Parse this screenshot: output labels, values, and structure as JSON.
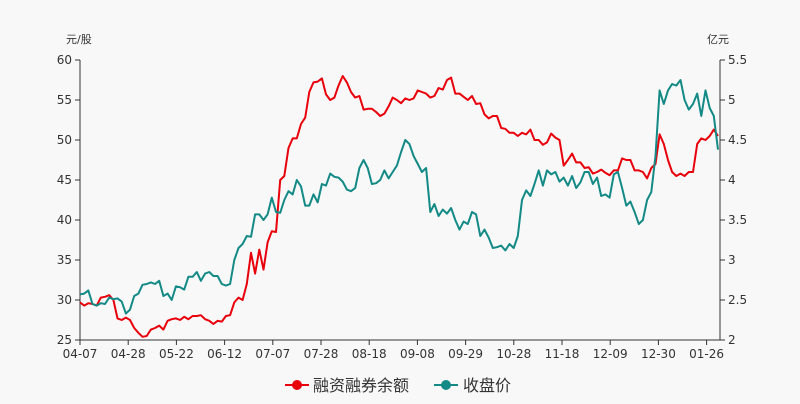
{
  "chart_data": {
    "type": "line",
    "left_axis": {
      "label": "元/股",
      "ylim": [
        25,
        60
      ],
      "ticks": [
        "25",
        "30",
        "35",
        "40",
        "45",
        "50",
        "55",
        "60"
      ]
    },
    "right_axis": {
      "label": "亿元",
      "ylim": [
        2,
        5.5
      ],
      "ticks": [
        "2",
        "2.5",
        "3",
        "3.5",
        "4",
        "4.5",
        "5",
        "5.5"
      ]
    },
    "x_ticks": [
      "04-07",
      "04-28",
      "05-22",
      "06-12",
      "07-07",
      "07-28",
      "08-18",
      "09-08",
      "09-29",
      "10-28",
      "11-18",
      "12-09",
      "12-30",
      "01-26"
    ],
    "grid": false,
    "legend_position": "bottom",
    "series": [
      {
        "name": "融资融券余额",
        "axis": "right",
        "color": "#e8000b",
        "values": [
          2.47,
          2.43,
          2.46,
          2.45,
          2.43,
          2.53,
          2.54,
          2.56,
          2.5,
          2.27,
          2.25,
          2.28,
          2.25,
          2.15,
          2.09,
          2.04,
          2.05,
          2.13,
          2.15,
          2.18,
          2.13,
          2.24,
          2.26,
          2.27,
          2.25,
          2.29,
          2.26,
          2.3,
          2.3,
          2.31,
          2.26,
          2.24,
          2.2,
          2.24,
          2.23,
          2.3,
          2.31,
          2.47,
          2.53,
          2.5,
          2.7,
          3.09,
          2.83,
          3.13,
          2.88,
          3.22,
          3.36,
          3.35,
          4.0,
          4.05,
          4.4,
          4.52,
          4.52,
          4.7,
          4.78,
          5.1,
          5.22,
          5.23,
          5.27,
          5.07,
          5.0,
          5.03,
          5.18,
          5.3,
          5.22,
          5.1,
          5.03,
          5.05,
          4.88,
          4.89,
          4.89,
          4.85,
          4.8,
          4.83,
          4.92,
          5.03,
          5.0,
          4.96,
          5.02,
          5.0,
          5.02,
          5.12,
          5.1,
          5.08,
          5.03,
          5.05,
          5.15,
          5.13,
          5.25,
          5.28,
          5.08,
          5.08,
          5.04,
          5.0,
          5.05,
          4.95,
          4.96,
          4.82,
          4.77,
          4.8,
          4.8,
          4.65,
          4.64,
          4.59,
          4.59,
          4.55,
          4.59,
          4.57,
          4.63,
          4.5,
          4.5,
          4.44,
          4.47,
          4.58,
          4.53,
          4.5,
          4.18,
          4.25,
          4.33,
          4.22,
          4.22,
          4.15,
          4.16,
          4.08,
          4.1,
          4.13,
          4.09,
          4.06,
          4.12,
          4.12,
          4.27,
          4.25,
          4.25,
          4.12,
          4.12,
          4.1,
          4.02,
          4.15,
          4.2,
          4.57,
          4.45,
          4.25,
          4.1,
          4.05,
          4.08,
          4.05,
          4.1,
          4.1,
          4.45,
          4.52,
          4.5,
          4.55,
          4.63,
          4.55
        ]
      },
      {
        "name": "收盘价",
        "axis": "left",
        "color": "#138a86",
        "values": [
          30.7,
          30.8,
          31.2,
          29.5,
          29.3,
          29.6,
          29.5,
          30.3,
          30.1,
          30.2,
          29.8,
          28.3,
          28.8,
          30.5,
          30.8,
          31.9,
          32.0,
          32.2,
          32.0,
          32.4,
          30.5,
          30.8,
          30.0,
          31.7,
          31.6,
          31.3,
          32.9,
          32.9,
          33.5,
          32.4,
          33.3,
          33.5,
          33.0,
          33.0,
          32.0,
          31.8,
          32.0,
          35.0,
          36.5,
          37.0,
          38.0,
          37.9,
          40.7,
          40.7,
          40.0,
          40.7,
          42.8,
          41.0,
          40.9,
          42.5,
          43.6,
          43.2,
          45.0,
          44.2,
          41.8,
          41.8,
          43.2,
          42.2,
          44.5,
          44.3,
          45.8,
          45.4,
          45.3,
          44.8,
          43.8,
          43.6,
          44.0,
          46.5,
          47.5,
          46.5,
          44.5,
          44.6,
          45.0,
          46.2,
          45.2,
          46.0,
          46.8,
          48.5,
          50.0,
          49.5,
          48.0,
          47.0,
          46.0,
          46.5,
          41.0,
          42.0,
          40.5,
          41.3,
          40.8,
          41.5,
          40.0,
          38.8,
          39.8,
          39.5,
          41.0,
          40.7,
          38.0,
          38.8,
          37.8,
          36.5,
          36.6,
          36.8,
          36.2,
          37.0,
          36.5,
          38.0,
          42.5,
          43.7,
          43.0,
          44.5,
          46.2,
          44.3,
          46.2,
          45.7,
          46.0,
          44.8,
          45.3,
          44.3,
          45.5,
          44.0,
          44.7,
          46.0,
          46.0,
          44.5,
          45.3,
          43.0,
          43.2,
          42.8,
          45.7,
          46.0,
          44.0,
          41.8,
          42.3,
          41.0,
          39.5,
          40.0,
          42.5,
          43.5,
          48.0,
          56.2,
          54.5,
          56.2,
          57.0,
          56.8,
          57.5,
          55.0,
          53.8,
          54.5,
          55.8,
          53.0,
          56.2,
          54.0,
          53.0,
          48.8
        ]
      }
    ]
  }
}
